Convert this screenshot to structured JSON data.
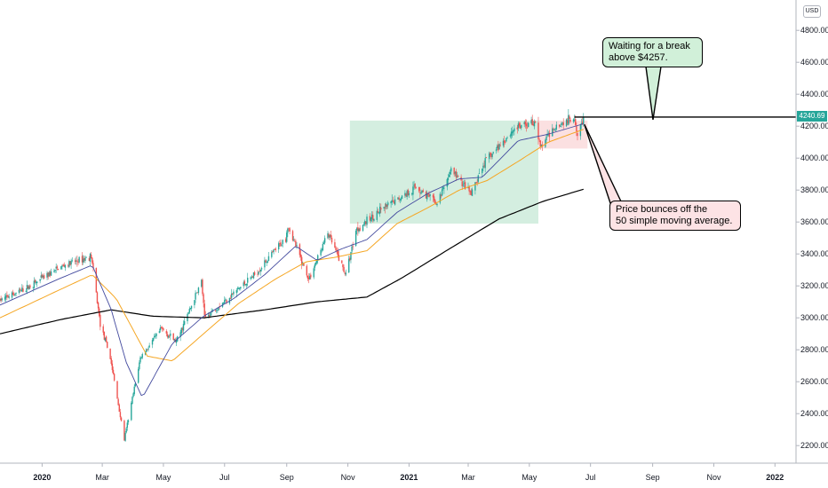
{
  "chart_data": {
    "type": "candlestick",
    "currency": "USD",
    "last_price_label": "4240.69",
    "y_ticks": [
      2200,
      2400,
      2600,
      2800,
      3000,
      3200,
      3400,
      3600,
      3800,
      4000,
      4200,
      4400,
      4600,
      4800
    ],
    "y_tick_labels": [
      "2200.00",
      "2400.00",
      "2600.00",
      "2800.00",
      "3000.00",
      "3200.00",
      "3400.00",
      "3600.00",
      "3800.00",
      "4000.00",
      "4200.00",
      "4400.00",
      "4600.00",
      "4800.00"
    ],
    "ylim": [
      2090,
      4990
    ],
    "xlim": [
      "2019-11-20",
      "2022-01-22"
    ],
    "x_ticks": [
      {
        "label": "2020",
        "date": "2020-01-01",
        "year": true
      },
      {
        "label": "Mar",
        "date": "2020-03-01",
        "year": false
      },
      {
        "label": "May",
        "date": "2020-05-01",
        "year": false
      },
      {
        "label": "Jul",
        "date": "2020-07-01",
        "year": false
      },
      {
        "label": "Sep",
        "date": "2020-09-01",
        "year": false
      },
      {
        "label": "Nov",
        "date": "2020-11-01",
        "year": false
      },
      {
        "label": "2021",
        "date": "2021-01-01",
        "year": true
      },
      {
        "label": "Mar",
        "date": "2021-03-01",
        "year": false
      },
      {
        "label": "May",
        "date": "2021-05-01",
        "year": false
      },
      {
        "label": "Jul",
        "date": "2021-07-01",
        "year": false
      },
      {
        "label": "Sep",
        "date": "2021-09-01",
        "year": false
      },
      {
        "label": "Nov",
        "date": "2021-11-01",
        "year": false
      },
      {
        "label": "2022",
        "date": "2022-01-01",
        "year": true
      }
    ],
    "price_anchors": [
      [
        "2019-11-20",
        3110
      ],
      [
        "2019-12-15",
        3180
      ],
      [
        "2020-01-20",
        3320
      ],
      [
        "2020-02-19",
        3386
      ],
      [
        "2020-02-28",
        2960
      ],
      [
        "2020-03-09",
        2750
      ],
      [
        "2020-03-23",
        2237
      ],
      [
        "2020-04-08",
        2750
      ],
      [
        "2020-04-29",
        2930
      ],
      [
        "2020-05-14",
        2850
      ],
      [
        "2020-06-08",
        3230
      ],
      [
        "2020-06-11",
        3000
      ],
      [
        "2020-06-30",
        3100
      ],
      [
        "2020-07-31",
        3270
      ],
      [
        "2020-08-31",
        3500
      ],
      [
        "2020-09-02",
        3580
      ],
      [
        "2020-09-23",
        3240
      ],
      [
        "2020-10-12",
        3530
      ],
      [
        "2020-10-30",
        3270
      ],
      [
        "2020-11-09",
        3550
      ],
      [
        "2020-12-01",
        3660
      ],
      [
        "2021-01-08",
        3820
      ],
      [
        "2021-01-29",
        3714
      ],
      [
        "2021-02-12",
        3930
      ],
      [
        "2021-03-04",
        3770
      ],
      [
        "2021-03-17",
        3970
      ],
      [
        "2021-04-16",
        4185
      ],
      [
        "2021-05-07",
        4230
      ],
      [
        "2021-05-12",
        4063
      ],
      [
        "2021-05-26",
        4200
      ],
      [
        "2021-06-15",
        4255
      ],
      [
        "2021-06-18",
        4166
      ],
      [
        "2021-06-24",
        4240.69
      ]
    ],
    "sma20_anchors": [
      [
        "2019-11-20",
        3080
      ],
      [
        "2020-01-20",
        3250
      ],
      [
        "2020-02-20",
        3330
      ],
      [
        "2020-03-10",
        3050
      ],
      [
        "2020-03-25",
        2720
      ],
      [
        "2020-04-10",
        2500
      ],
      [
        "2020-05-10",
        2840
      ],
      [
        "2020-06-10",
        3010
      ],
      [
        "2020-07-10",
        3120
      ],
      [
        "2020-08-10",
        3270
      ],
      [
        "2020-09-10",
        3450
      ],
      [
        "2020-10-01",
        3360
      ],
      [
        "2020-10-25",
        3430
      ],
      [
        "2020-11-20",
        3490
      ],
      [
        "2020-12-20",
        3660
      ],
      [
        "2021-01-20",
        3780
      ],
      [
        "2021-02-20",
        3870
      ],
      [
        "2021-03-15",
        3880
      ],
      [
        "2021-04-20",
        4110
      ],
      [
        "2021-05-20",
        4150
      ],
      [
        "2021-06-24",
        4215
      ]
    ],
    "sma50_anchors": [
      [
        "2019-11-20",
        3000
      ],
      [
        "2020-01-20",
        3180
      ],
      [
        "2020-02-20",
        3270
      ],
      [
        "2020-03-15",
        3120
      ],
      [
        "2020-04-15",
        2760
      ],
      [
        "2020-05-10",
        2730
      ],
      [
        "2020-06-10",
        2900
      ],
      [
        "2020-07-15",
        3090
      ],
      [
        "2020-08-20",
        3240
      ],
      [
        "2020-09-20",
        3350
      ],
      [
        "2020-10-20",
        3380
      ],
      [
        "2020-11-20",
        3420
      ],
      [
        "2020-12-20",
        3590
      ],
      [
        "2021-01-20",
        3690
      ],
      [
        "2021-02-20",
        3800
      ],
      [
        "2021-03-20",
        3860
      ],
      [
        "2021-04-20",
        3980
      ],
      [
        "2021-05-20",
        4100
      ],
      [
        "2021-06-24",
        4180
      ]
    ],
    "sma200_anchors": [
      [
        "2019-11-20",
        2900
      ],
      [
        "2020-01-20",
        2990
      ],
      [
        "2020-03-10",
        3050
      ],
      [
        "2020-04-20",
        3010
      ],
      [
        "2020-06-10",
        3000
      ],
      [
        "2020-08-10",
        3050
      ],
      [
        "2020-10-01",
        3100
      ],
      [
        "2020-11-20",
        3130
      ],
      [
        "2020-12-25",
        3250
      ],
      [
        "2021-02-15",
        3450
      ],
      [
        "2021-04-01",
        3620
      ],
      [
        "2021-05-15",
        3730
      ],
      [
        "2021-06-24",
        3805
      ]
    ],
    "series_colors": {
      "up": "#26a69a",
      "down": "#ef5350",
      "sma20": "#434a9e",
      "sma50": "#f5a623",
      "sma200": "#000000"
    },
    "rectangles": [
      {
        "name": "consolidation-zone",
        "x0": "2020-11-03",
        "x1": "2021-05-10",
        "y0": 3590,
        "y1": 4235,
        "color": "#d4eee0"
      },
      {
        "name": "bounce-zone",
        "x0": "2021-05-10",
        "x1": "2021-06-28",
        "y0": 4060,
        "y1": 4235,
        "color": "#fbe0e1"
      }
    ],
    "hline": {
      "name": "resistance-line",
      "x0": "2021-06-15",
      "value": 4257
    },
    "annotations": [
      {
        "key": "green",
        "lines": [
          "Waiting for a break",
          "above $4257."
        ]
      },
      {
        "key": "red",
        "lines": [
          "Price bounces off the",
          "50 simple moving average."
        ]
      }
    ]
  }
}
